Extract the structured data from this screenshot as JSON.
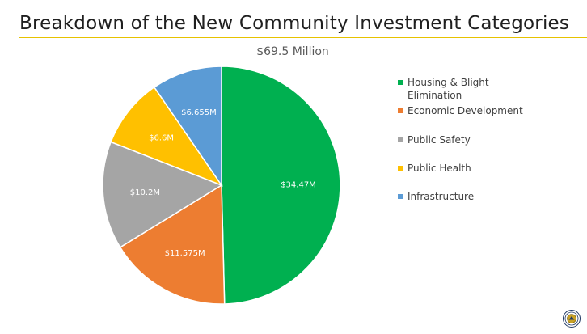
{
  "page": {
    "title": "Breakdown of the New Community Investment Categories",
    "accent_rule_color": "#e6c200"
  },
  "chart_data": {
    "type": "pie",
    "title": "$69.5 Million",
    "slices": [
      {
        "label": "Housing & Blight Elimination",
        "value": 34.47,
        "data_label": "$34.47M",
        "color": "#00b050"
      },
      {
        "label": "Economic Development",
        "value": 11.575,
        "data_label": "$11.575M",
        "color": "#ed7d31"
      },
      {
        "label": "Public Safety",
        "value": 10.2,
        "data_label": "$10.2M",
        "color": "#a5a5a5"
      },
      {
        "label": "Public Health",
        "value": 6.6,
        "data_label": "$6.6M",
        "color": "#ffc000"
      },
      {
        "label": "Infrastructure",
        "value": 6.655,
        "data_label": "$6.655M",
        "color": "#5b9bd5"
      }
    ],
    "legend_position": "right",
    "start": "12 o'clock",
    "direction": "clockwise"
  },
  "icons": {
    "seal": "city-seal-icon"
  }
}
